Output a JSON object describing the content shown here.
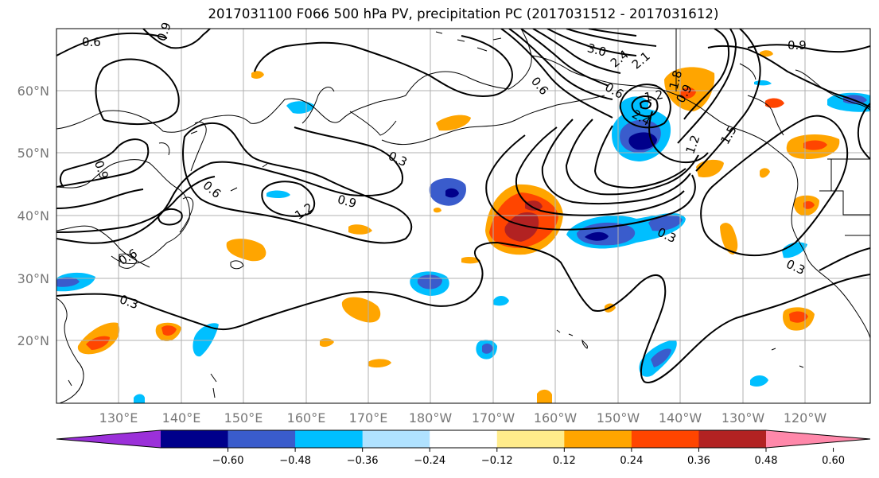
{
  "title": "2017031100 F066 500 hPa PV, precipitation PC (2017031512 - 2017031612)",
  "map": {
    "lat_ticks": [
      "60°N",
      "50°N",
      "40°N",
      "30°N",
      "20°N"
    ],
    "lon_ticks": [
      "130°E",
      "140°E",
      "150°E",
      "160°E",
      "170°E",
      "180°W",
      "170°W",
      "160°W",
      "150°W",
      "140°W",
      "130°W",
      "120°W"
    ],
    "grid": true,
    "contour_labels": [
      "0.6",
      "0.9",
      "0.9",
      "0.6",
      "0.6",
      "0.3",
      "1.2",
      "0.9",
      "0.3",
      "3.0",
      "2.4",
      "2.1",
      "1.8",
      "0.6",
      "2.4",
      "1.2",
      "0.9",
      "0.3",
      "0.3",
      "0.6",
      "1.2",
      "0.9",
      "1.5"
    ]
  },
  "colorbar": {
    "ticks": [
      "−0.60",
      "−0.48",
      "−0.36",
      "−0.24",
      "−0.12",
      "0.12",
      "0.24",
      "0.36",
      "0.48",
      "0.60"
    ],
    "colors": [
      "#9b30d9",
      "#00008b",
      "#3a5ccc",
      "#00bfff",
      "#b0e2ff",
      "#ffffff",
      "#ffec8b",
      "#ffa500",
      "#ff4500",
      "#b22222",
      "#ff88aa"
    ]
  },
  "colors": {
    "land_outline": "#000000",
    "grid": "#b0b0b0",
    "contour": "#000000"
  }
}
